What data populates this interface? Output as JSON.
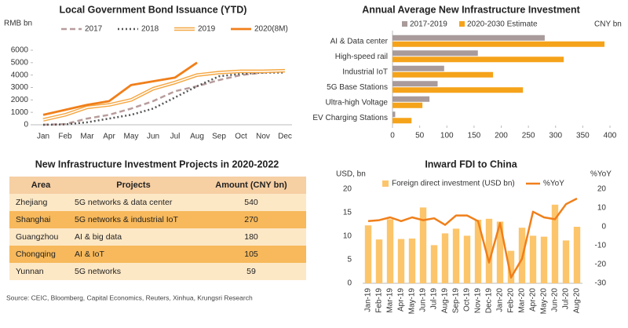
{
  "chart_data": [
    {
      "type": "line",
      "title": "Local Government Bond Issuance (YTD)",
      "ylabel": "RMB bn",
      "categories": [
        "Jan",
        "Feb",
        "Mar",
        "Apr",
        "May",
        "Jun",
        "Jul",
        "Aug",
        "Sep",
        "Oct",
        "Nov",
        "Dec"
      ],
      "series": [
        {
          "name": "2017",
          "color": "#b89c9c",
          "style": "dashed",
          "values": [
            0,
            50,
            500,
            800,
            1300,
            1900,
            2700,
            3100,
            3600,
            4000,
            4200,
            4300
          ]
        },
        {
          "name": "2018",
          "color": "#555555",
          "style": "dotted",
          "values": [
            0,
            30,
            200,
            500,
            800,
            1300,
            2200,
            3100,
            3900,
            4100,
            4200,
            4200
          ]
        },
        {
          "name": "2019",
          "color": "#f5a742",
          "style": "double",
          "values": [
            400,
            800,
            1400,
            1600,
            2000,
            2900,
            3400,
            4000,
            4200,
            4300,
            4300,
            4350
          ]
        },
        {
          "name": "2020(8M)",
          "color": "#f07f1a",
          "style": "solid",
          "values": [
            800,
            1200,
            1600,
            1900,
            3200,
            3500,
            3800,
            5000,
            null,
            null,
            null,
            null
          ]
        }
      ],
      "ylim": [
        0,
        6000
      ],
      "yticks": [
        0,
        1000,
        2000,
        3000,
        4000,
        5000,
        6000
      ],
      "grid": false
    },
    {
      "type": "hbar",
      "title": "Annual Average New Infrastructure Investment",
      "unit": "CNY bn",
      "categories": [
        "AI & Data center",
        "High-speed rail",
        "Industrial IoT",
        "5G Base Stations",
        "Ultra-high Voltage",
        "EV Charging Stations"
      ],
      "series": [
        {
          "name": "2017-2019",
          "color": "#a99b9b",
          "values": [
            280,
            157,
            95,
            83,
            68,
            5
          ]
        },
        {
          "name": "2020-2030 Estimate",
          "color": "#f5a31a",
          "values": [
            390,
            315,
            185,
            240,
            55,
            35
          ]
        }
      ],
      "xlim": [
        0,
        400
      ],
      "xticks": [
        0,
        50,
        100,
        150,
        200,
        250,
        300,
        350,
        400
      ],
      "grid": false
    },
    {
      "type": "combo",
      "title": "Inward FDI to China",
      "ylabel": "USD, bn",
      "y2label": "%YoY",
      "categories": [
        "Jan-19",
        "Feb-19",
        "Mar-19",
        "Apr-19",
        "May-19",
        "Jun-19",
        "Jul-19",
        "Aug-19",
        "Sep-19",
        "Oct-19",
        "Nov-19",
        "Dec-19",
        "Jan-20",
        "Feb-20",
        "Mar-20",
        "Apr-20",
        "May-20",
        "Jun-20",
        "Jul-20",
        "Aug-20"
      ],
      "series": [
        {
          "name": "Foreign direct investment (USD bn)",
          "type": "bar",
          "color": "#fcc56b",
          "values": [
            12.3,
            9.3,
            13.6,
            9.4,
            9.5,
            16.1,
            8.1,
            10.6,
            11.6,
            10.1,
            13.5,
            13.7,
            13.1,
            6.9,
            11.8,
            10.1,
            9.9,
            16.7,
            9.1,
            12.0
          ]
        },
        {
          "name": "%YoY",
          "type": "line",
          "axis": "y2",
          "color": "#f07f1a",
          "values": [
            3,
            3.5,
            5,
            3,
            5,
            3.5,
            4.5,
            1,
            6,
            6,
            3,
            -19,
            2,
            -27,
            -17,
            8,
            5,
            4,
            12,
            15
          ]
        }
      ],
      "ylim": [
        0,
        20
      ],
      "yticks": [
        0,
        5,
        10,
        15,
        20
      ],
      "y2lim": [
        -30,
        20
      ],
      "y2ticks": [
        -30,
        -20,
        -10,
        0,
        10,
        20
      ],
      "grid": false
    }
  ],
  "table": {
    "title": "New Infrastructure Investment Projects in 2020-2022",
    "columns": [
      "Area",
      "Projects",
      "Amount (CNY bn)"
    ],
    "rows": [
      [
        "Zhejiang",
        "5G networks & data center",
        540
      ],
      [
        "Shanghai",
        "5G networks & industrial IoT",
        270
      ],
      [
        "Guangzhou",
        "AI & big data",
        180
      ],
      [
        "Chongqing",
        "AI & IoT",
        105
      ],
      [
        "Yunnan",
        "5G networks",
        59
      ]
    ]
  },
  "source": "Source: CEIC, Bloomberg, Capital Economics, Reuters, Xinhua, Krungsri Research"
}
